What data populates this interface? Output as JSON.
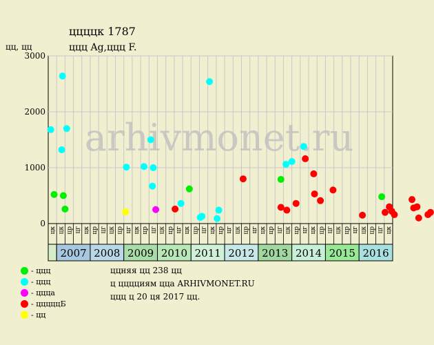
{
  "title": "ццццк 1787",
  "subtitle": "ццц Ag,ццц F.",
  "ylabel": "цц, цц",
  "watermark": "arhivmonet.ru",
  "notes": [
    "ццняя цц 238 цц",
    "ц цццциям цца ARHIVMONET.RU",
    "ццц ц 20 ця 2017 цц."
  ],
  "legend": [
    {
      "label": "- ццц",
      "color": "#00ee00"
    },
    {
      "label": "- ццц",
      "color": "#00ffff"
    },
    {
      "label": "- ццца",
      "color": "#ff00ff"
    },
    {
      "label": "- цццццБ",
      "color": "#ff0000"
    },
    {
      "label": "- цц",
      "color": "#ffff00"
    }
  ],
  "chart_data": {
    "type": "scatter",
    "ylim": [
      0,
      3000
    ],
    "yticks": [
      "0",
      "1000",
      "2000",
      "3000"
    ],
    "quarter_labels": [
      "цк",
      "цк",
      "цр",
      "цг",
      "цк",
      "цр",
      "цг",
      "цк",
      "цр",
      "цг",
      "цк",
      "цр",
      "цг",
      "цк",
      "цр",
      "цг",
      "цк",
      "цр",
      "цг",
      "цк",
      "цр",
      "цг",
      "цк",
      "цр",
      "цг",
      "цк",
      "цр",
      "цг",
      "цк",
      "цр",
      "цг",
      "цк",
      "цр",
      "цг",
      "цк",
      "цр",
      "цг",
      "цк",
      "цр",
      "цг",
      "цк"
    ],
    "years": [
      {
        "label": "",
        "span": 1,
        "color": "#d8ecc8"
      },
      {
        "label": "2007",
        "span": 4,
        "color": "#a8c8e0"
      },
      {
        "label": "2008",
        "span": 4,
        "color": "#b8d8e8"
      },
      {
        "label": "2009",
        "span": 4,
        "color": "#a8dca8"
      },
      {
        "label": "2010",
        "span": 4,
        "color": "#b8e8b8"
      },
      {
        "label": "2011",
        "span": 4,
        "color": "#d0f0d8"
      },
      {
        "label": "2012",
        "span": 4,
        "color": "#c8e8e8"
      },
      {
        "label": "2013",
        "span": 4,
        "color": "#a0d8a0"
      },
      {
        "label": "2014",
        "span": 4,
        "color": "#c8f0d8"
      },
      {
        "label": "2015",
        "span": 4,
        "color": "#98e898"
      },
      {
        "label": "2016",
        "span": 4,
        "color": "#a8e0e0"
      }
    ],
    "series": [
      {
        "color": "#00ee00",
        "points": [
          [
            0.7,
            520
          ],
          [
            1.8,
            500
          ],
          [
            2.0,
            260
          ],
          [
            16.8,
            620
          ],
          [
            27.7,
            790
          ],
          [
            39.7,
            480
          ]
        ]
      },
      {
        "color": "#00ffff",
        "points": [
          [
            0.3,
            1680
          ],
          [
            1.6,
            1320
          ],
          [
            1.7,
            2640
          ],
          [
            2.2,
            1700
          ],
          [
            9.3,
            1010
          ],
          [
            11.4,
            1020
          ],
          [
            12.2,
            1500
          ],
          [
            12.4,
            670
          ],
          [
            12.5,
            1000
          ],
          [
            15.8,
            360
          ],
          [
            18.3,
            130
          ],
          [
            18.1,
            110
          ],
          [
            19.2,
            2540
          ],
          [
            20.1,
            90
          ],
          [
            20.3,
            240
          ],
          [
            28.3,
            1060
          ],
          [
            29.0,
            1110
          ],
          [
            30.4,
            1380
          ]
        ]
      },
      {
        "color": "#ff00ff",
        "points": [
          [
            12.8,
            250
          ]
        ]
      },
      {
        "color": "#ff0000",
        "points": [
          [
            15.1,
            260
          ],
          [
            23.2,
            800
          ],
          [
            27.7,
            290
          ],
          [
            28.4,
            240
          ],
          [
            29.5,
            360
          ],
          [
            30.6,
            1160
          ],
          [
            31.6,
            890
          ],
          [
            31.7,
            530
          ],
          [
            32.4,
            410
          ],
          [
            33.9,
            600
          ],
          [
            37.4,
            150
          ],
          [
            40.1,
            200
          ],
          [
            40.6,
            300
          ],
          [
            40.9,
            220
          ],
          [
            41.2,
            160
          ],
          [
            43.3,
            430
          ],
          [
            43.5,
            280
          ],
          [
            43.9,
            300
          ],
          [
            44.1,
            100
          ],
          [
            45.2,
            160
          ],
          [
            45.5,
            200
          ]
        ]
      },
      {
        "color": "#ffff00",
        "points": [
          [
            9.2,
            210
          ]
        ]
      }
    ]
  }
}
